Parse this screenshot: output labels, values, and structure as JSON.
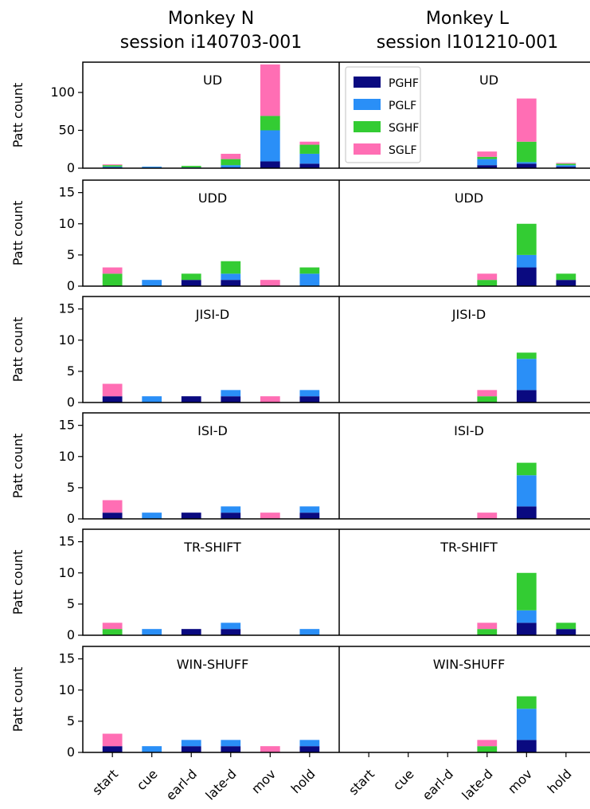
{
  "columns": [
    {
      "title_line1": "Monkey N",
      "title_line2": "session i140703-001"
    },
    {
      "title_line1": "Monkey L",
      "title_line2": "session l101210-001"
    }
  ],
  "ylabel": "Patt count",
  "legend": [
    {
      "name": "PGHF",
      "color": "#0a0a80"
    },
    {
      "name": "PGLF",
      "color": "#2a8ff7"
    },
    {
      "name": "SGHF",
      "color": "#33cc33"
    },
    {
      "name": "SGLF",
      "color": "#ff6eb4"
    }
  ],
  "chart_data": {
    "type": "bar",
    "stacked": true,
    "categories": [
      "start",
      "cue",
      "earl-d",
      "late-d",
      "mov",
      "hold"
    ],
    "series_names": [
      "PGHF",
      "PGLF",
      "SGHF",
      "SGLF"
    ],
    "colors": [
      "#0a0a80",
      "#2a8ff7",
      "#33cc33",
      "#ff6eb4"
    ],
    "legend_position": "upper-left of Monkey L UD panel",
    "rows": [
      {
        "title": "UD",
        "ylim": [
          0,
          140
        ],
        "yticks": [
          0,
          50,
          100
        ],
        "panels": [
          {
            "PGHF": [
              1,
              0,
              0,
              1,
              9,
              6
            ],
            "PGLF": [
              1,
              2,
              1,
              3,
              41,
              13
            ],
            "SGHF": [
              2,
              0,
              2,
              8,
              19,
              12
            ],
            "SGLF": [
              1,
              0,
              0,
              7,
              68,
              4
            ]
          },
          {
            "PGHF": [
              0,
              0,
              0,
              4,
              6,
              2
            ],
            "PGLF": [
              0,
              0,
              0,
              8,
              2,
              2
            ],
            "SGHF": [
              0,
              0,
              0,
              3,
              27,
              2
            ],
            "SGLF": [
              0,
              0,
              0,
              7,
              57,
              1
            ]
          }
        ]
      },
      {
        "title": "UDD",
        "ylim": [
          0,
          17
        ],
        "yticks": [
          0,
          5,
          10,
          15
        ],
        "panels": [
          {
            "PGHF": [
              0,
              0,
              1,
              1,
              0,
              0
            ],
            "PGLF": [
              0,
              1,
              0,
              1,
              0,
              2
            ],
            "SGHF": [
              2,
              0,
              1,
              2,
              0,
              1
            ],
            "SGLF": [
              1,
              0,
              0,
              0,
              1,
              0
            ]
          },
          {
            "PGHF": [
              0,
              0,
              0,
              0,
              3,
              1
            ],
            "PGLF": [
              0,
              0,
              0,
              0,
              2,
              0
            ],
            "SGHF": [
              0,
              0,
              0,
              1,
              5,
              1
            ],
            "SGLF": [
              0,
              0,
              0,
              1,
              0,
              0
            ]
          }
        ]
      },
      {
        "title": "JISI-D",
        "ylim": [
          0,
          17
        ],
        "yticks": [
          0,
          5,
          10,
          15
        ],
        "panels": [
          {
            "PGHF": [
              1,
              0,
              1,
              1,
              0,
              1
            ],
            "PGLF": [
              0,
              1,
              0,
              1,
              0,
              1
            ],
            "SGHF": [
              0,
              0,
              0,
              0,
              0,
              0
            ],
            "SGLF": [
              2,
              0,
              0,
              0,
              1,
              0
            ]
          },
          {
            "PGHF": [
              0,
              0,
              0,
              0,
              2,
              0
            ],
            "PGLF": [
              0,
              0,
              0,
              0,
              5,
              0
            ],
            "SGHF": [
              0,
              0,
              0,
              1,
              1,
              0
            ],
            "SGLF": [
              0,
              0,
              0,
              1,
              0,
              0
            ]
          }
        ]
      },
      {
        "title": "ISI-D",
        "ylim": [
          0,
          17
        ],
        "yticks": [
          0,
          5,
          10,
          15
        ],
        "panels": [
          {
            "PGHF": [
              1,
              0,
              1,
              1,
              0,
              1
            ],
            "PGLF": [
              0,
              1,
              0,
              1,
              0,
              1
            ],
            "SGHF": [
              0,
              0,
              0,
              0,
              0,
              0
            ],
            "SGLF": [
              2,
              0,
              0,
              0,
              1,
              0
            ]
          },
          {
            "PGHF": [
              0,
              0,
              0,
              0,
              2,
              0
            ],
            "PGLF": [
              0,
              0,
              0,
              0,
              5,
              0
            ],
            "SGHF": [
              0,
              0,
              0,
              0,
              2,
              0
            ],
            "SGLF": [
              0,
              0,
              0,
              1,
              0,
              0
            ]
          }
        ]
      },
      {
        "title": "TR-SHIFT",
        "ylim": [
          0,
          17
        ],
        "yticks": [
          0,
          5,
          10,
          15
        ],
        "panels": [
          {
            "PGHF": [
              0,
              0,
              1,
              1,
              0,
              0
            ],
            "PGLF": [
              0,
              1,
              0,
              1,
              0,
              1
            ],
            "SGHF": [
              1,
              0,
              0,
              0,
              0,
              0
            ],
            "SGLF": [
              1,
              0,
              0,
              0,
              0,
              0
            ]
          },
          {
            "PGHF": [
              0,
              0,
              0,
              0,
              2,
              1
            ],
            "PGLF": [
              0,
              0,
              0,
              0,
              2,
              0
            ],
            "SGHF": [
              0,
              0,
              0,
              1,
              6,
              1
            ],
            "SGLF": [
              0,
              0,
              0,
              1,
              0,
              0
            ]
          }
        ]
      },
      {
        "title": "WIN-SHUFF",
        "ylim": [
          0,
          17
        ],
        "yticks": [
          0,
          5,
          10,
          15
        ],
        "panels": [
          {
            "PGHF": [
              1,
              0,
              1,
              1,
              0,
              1
            ],
            "PGLF": [
              0,
              1,
              1,
              1,
              0,
              1
            ],
            "SGHF": [
              0,
              0,
              0,
              0,
              0,
              0
            ],
            "SGLF": [
              2,
              0,
              0,
              0,
              1,
              0
            ]
          },
          {
            "PGHF": [
              0,
              0,
              0,
              0,
              2,
              0
            ],
            "PGLF": [
              0,
              0,
              0,
              0,
              5,
              0
            ],
            "SGHF": [
              0,
              0,
              0,
              1,
              2,
              0
            ],
            "SGLF": [
              0,
              0,
              0,
              1,
              0,
              0
            ]
          }
        ]
      }
    ]
  }
}
